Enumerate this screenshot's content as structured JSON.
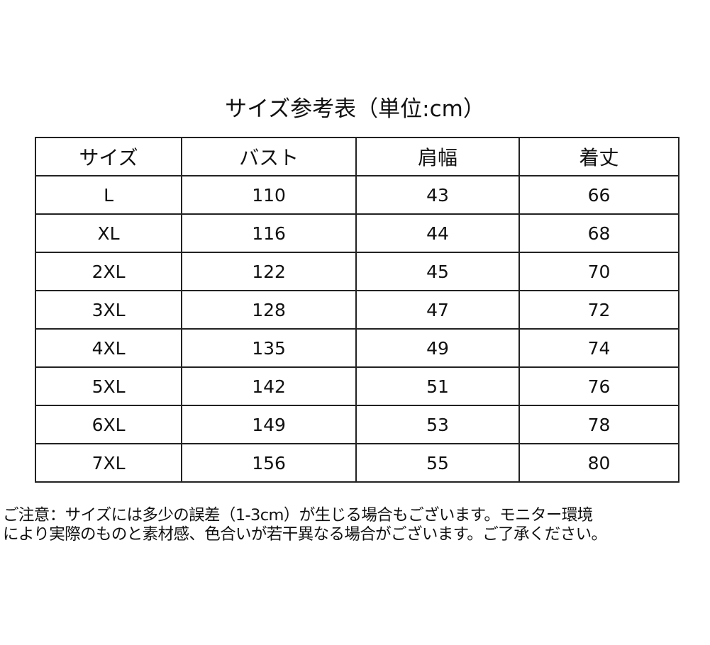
{
  "title": "サイズ参考表（単位:cm）",
  "table": {
    "headers": [
      "サイズ",
      "バスト",
      "肩幅",
      "着丈"
    ],
    "rows": [
      [
        "L",
        "110",
        "43",
        "66"
      ],
      [
        "XL",
        "116",
        "44",
        "68"
      ],
      [
        "2XL",
        "122",
        "45",
        "70"
      ],
      [
        "3XL",
        "128",
        "47",
        "72"
      ],
      [
        "4XL",
        "135",
        "49",
        "74"
      ],
      [
        "5XL",
        "142",
        "51",
        "76"
      ],
      [
        "6XL",
        "149",
        "53",
        "78"
      ],
      [
        "7XL",
        "156",
        "55",
        "80"
      ]
    ]
  },
  "note": {
    "line1": "ご注意：サイズには多少の誤差（1-3cm）が生じる場合もございます。モニター環境",
    "line2": "により実際のものと素材感、色合いが若干異なる場合がございます。ご了承ください。"
  }
}
